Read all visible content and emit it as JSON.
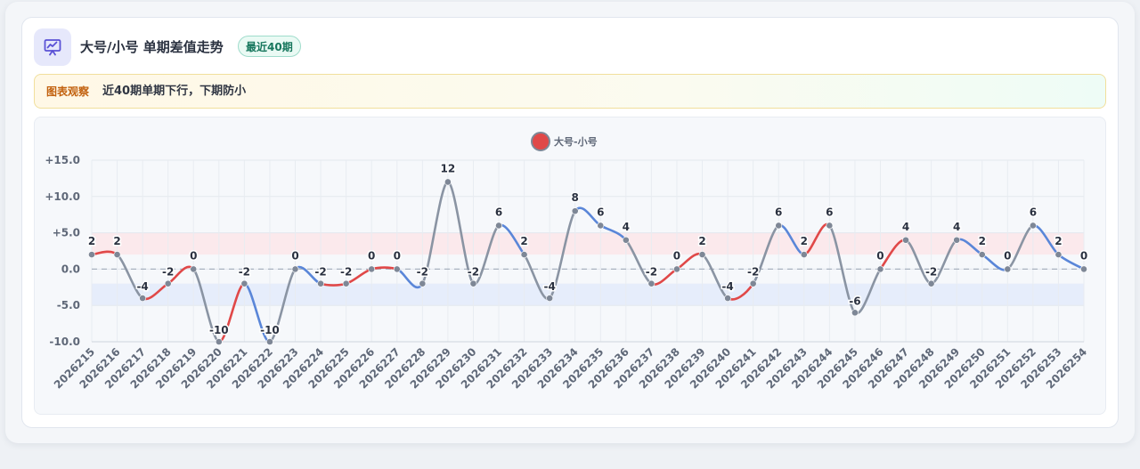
{
  "header": {
    "title": "大号/小号 单期差值走势",
    "badge": "最近40期",
    "icon": "trend-chart-icon"
  },
  "notice": {
    "label": "图表观察",
    "text": "近40期单期下行，下期防小"
  },
  "colors": {
    "up": "#e04848",
    "down": "#5a86d8",
    "neutral": "#8a94a3",
    "point": "#7e8796",
    "band_up": "#fbe6e9",
    "band_down": "#e3ebfa",
    "accent": "#5b52d6"
  },
  "chart_data": {
    "type": "line",
    "title": "",
    "xlabel": "",
    "ylabel": "",
    "legend": {
      "position": "top-center",
      "entries": [
        "大号-小号"
      ]
    },
    "grid": true,
    "ylim": [
      -10,
      15
    ],
    "yticks": [
      15,
      10,
      5,
      0,
      -5,
      -10
    ],
    "ytick_labels": [
      "+15.0",
      "+10.0",
      "+5.0",
      "0.0",
      "-5.0",
      "-10.0"
    ],
    "reference_bands": [
      [
        2,
        5
      ],
      [
        -5,
        -2
      ]
    ],
    "reference_line": 0,
    "categories": [
      "2026215",
      "2026216",
      "2026217",
      "2026218",
      "2026219",
      "2026220",
      "2026221",
      "2026222",
      "2026223",
      "2026224",
      "2026225",
      "2026226",
      "2026227",
      "2026228",
      "2026229",
      "2026230",
      "2026231",
      "2026232",
      "2026233",
      "2026234",
      "2026235",
      "2026236",
      "2026237",
      "2026238",
      "2026239",
      "2026240",
      "2026241",
      "2026242",
      "2026243",
      "2026244",
      "2026245",
      "2026246",
      "2026247",
      "2026248",
      "2026249",
      "2026250",
      "2026251",
      "2026252",
      "2026253",
      "2026254"
    ],
    "series": [
      {
        "name": "大号-小号",
        "values": [
          2,
          2,
          -4,
          -2,
          0,
          -10,
          -2,
          -10,
          0,
          -2,
          -2,
          0,
          0,
          -2,
          12,
          -2,
          6,
          2,
          -4,
          8,
          6,
          4,
          -2,
          0,
          2,
          -4,
          -2,
          6,
          2,
          6,
          -6,
          0,
          4,
          -2,
          4,
          2,
          0,
          6,
          2,
          0
        ]
      }
    ]
  }
}
